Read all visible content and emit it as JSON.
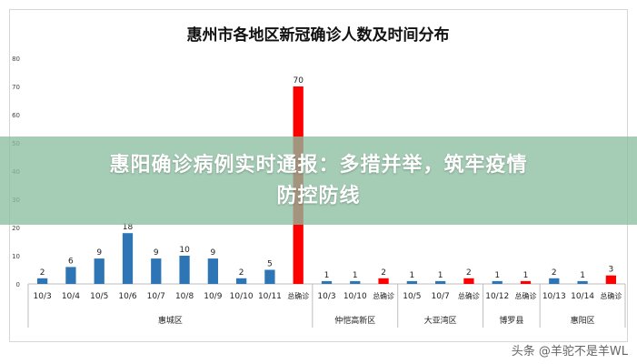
{
  "chart_data": {
    "type": "bar",
    "title": "惠州市各地区新冠确诊人数及时间分布",
    "xlabel": "",
    "ylabel": "",
    "ylim": [
      0,
      80
    ],
    "yticks": [
      0,
      10,
      20,
      30,
      40,
      50,
      60,
      70,
      80
    ],
    "grid": false,
    "legend": "none",
    "colors": {
      "daily": "#2e75b6",
      "total": "#ff0000"
    },
    "groups": [
      {
        "name": "惠城区",
        "bars": [
          {
            "label": "10/3",
            "value": 2,
            "kind": "daily"
          },
          {
            "label": "10/4",
            "value": 6,
            "kind": "daily"
          },
          {
            "label": "10/5",
            "value": 9,
            "kind": "daily"
          },
          {
            "label": "10/6",
            "value": 18,
            "kind": "daily"
          },
          {
            "label": "10/7",
            "value": 9,
            "kind": "daily"
          },
          {
            "label": "10/8",
            "value": 10,
            "kind": "daily"
          },
          {
            "label": "10/9",
            "value": 9,
            "kind": "daily"
          },
          {
            "label": "10/10",
            "value": 2,
            "kind": "daily"
          },
          {
            "label": "10/11",
            "value": 5,
            "kind": "daily"
          },
          {
            "label": "总确诊",
            "value": 70,
            "kind": "total"
          }
        ]
      },
      {
        "name": "仲恺高新区",
        "bars": [
          {
            "label": "10/3",
            "value": 1,
            "kind": "daily"
          },
          {
            "label": "10/10",
            "value": 1,
            "kind": "daily"
          },
          {
            "label": "总确诊",
            "value": 2,
            "kind": "total"
          }
        ]
      },
      {
        "name": "大亚湾区",
        "bars": [
          {
            "label": "10/5",
            "value": 1,
            "kind": "daily"
          },
          {
            "label": "10/7",
            "value": 1,
            "kind": "daily"
          },
          {
            "label": "总确诊",
            "value": 2,
            "kind": "total"
          }
        ]
      },
      {
        "name": "博罗县",
        "bars": [
          {
            "label": "10/12",
            "value": 1,
            "kind": "daily"
          },
          {
            "label": "总确诊",
            "value": 1,
            "kind": "total"
          }
        ]
      },
      {
        "name": "惠阳区",
        "bars": [
          {
            "label": "10/13",
            "value": 2,
            "kind": "daily"
          },
          {
            "label": "10/14",
            "value": 1,
            "kind": "daily"
          },
          {
            "label": "总确诊",
            "value": 3,
            "kind": "total"
          }
        ]
      }
    ]
  },
  "overlay": {
    "line1": "惠阳确诊病例实时通报：多措并举，筑牢疫情",
    "line2": "防控防线"
  },
  "watermark": "头条 @羊驼不是羊WL"
}
